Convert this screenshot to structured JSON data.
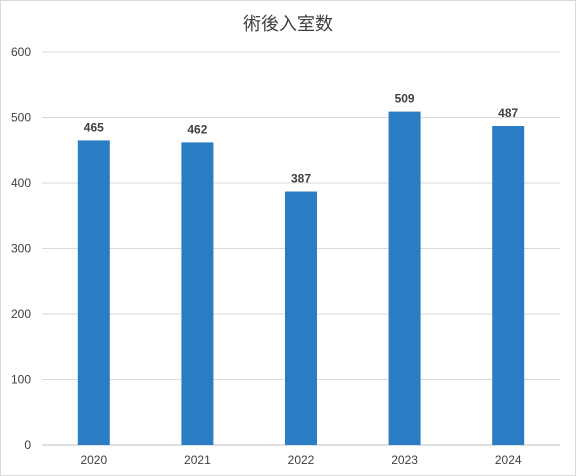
{
  "chart_data": {
    "type": "bar",
    "title": "術後入室数",
    "xlabel": "",
    "ylabel": "",
    "categories": [
      "2020",
      "2021",
      "2022",
      "2023",
      "2024"
    ],
    "values": [
      465,
      462,
      387,
      509,
      487
    ],
    "data_labels": [
      "465",
      "462",
      "387",
      "509",
      "487"
    ],
    "ylim": [
      0,
      600
    ],
    "yticks": [
      "0",
      "100",
      "200",
      "300",
      "400",
      "500",
      "600"
    ],
    "grid": true,
    "legend": "none",
    "bar_color": "#2a7dc2"
  }
}
